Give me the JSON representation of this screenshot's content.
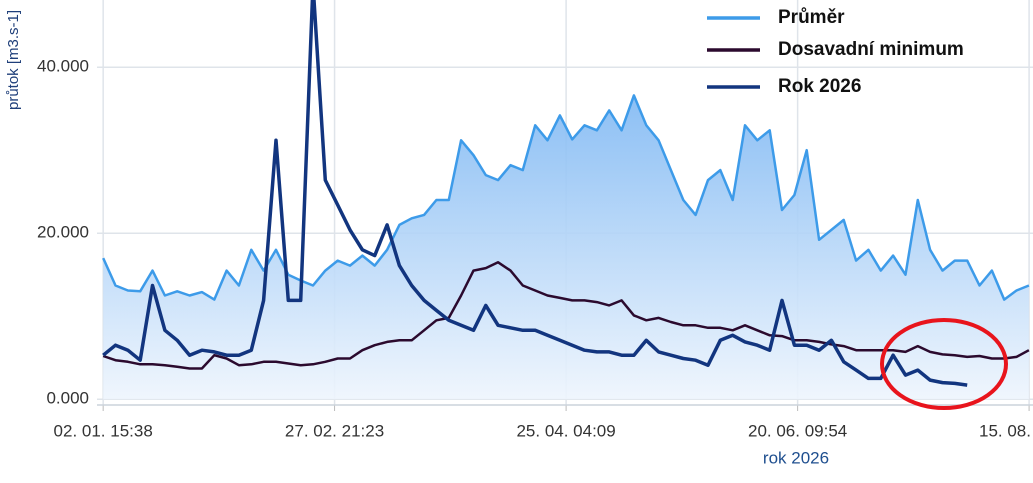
{
  "chart_data": {
    "type": "line",
    "y_label": "průtok [m3.s-1]",
    "x_label": "rok 2026",
    "x": [
      0,
      3,
      6,
      9,
      12,
      15,
      18,
      21,
      24,
      27,
      30,
      33,
      36,
      39,
      42,
      45,
      48,
      51,
      54,
      57,
      60,
      63,
      66,
      69,
      72,
      75,
      78,
      81,
      84,
      87,
      90,
      93,
      96,
      99,
      102,
      105,
      108,
      111,
      114,
      117,
      120,
      123,
      126,
      129,
      132,
      135,
      138,
      141,
      144,
      147,
      150,
      153,
      156,
      159,
      162,
      165,
      168,
      171,
      174,
      177,
      180,
      183,
      186,
      189,
      192,
      195,
      198,
      201,
      204,
      207,
      210,
      213,
      216,
      219,
      222,
      225
    ],
    "xlim": [
      -1.5,
      226
    ],
    "xticks": [
      {
        "value": 0,
        "label": "02. 01. 15:38"
      },
      {
        "value": 56.24,
        "label": "27. 02. 21:23"
      },
      {
        "value": 112.52,
        "label": "25. 04. 04:09"
      },
      {
        "value": 168.79,
        "label": "20. 06. 09:54"
      },
      {
        "value": 225.05,
        "label": "15. 08."
      }
    ],
    "ylim": [
      -0.7,
      48.1
    ],
    "yticks": [
      {
        "value": 0,
        "label": "0.000"
      },
      {
        "value": 20,
        "label": "20.000"
      },
      {
        "value": 40,
        "label": "40.000"
      }
    ],
    "grid": true,
    "legend": "top-right",
    "series": [
      {
        "name": "Průměr",
        "color": "#3d9be9",
        "area": true,
        "values": [
          17,
          13.7,
          13.1,
          13,
          15.5,
          12.5,
          13,
          12.5,
          12.9,
          12,
          15.5,
          13.7,
          18,
          15.5,
          18,
          15,
          14.3,
          13.7,
          15.5,
          16.7,
          16.1,
          17.3,
          16.1,
          18,
          21,
          21.8,
          22.2,
          24,
          24,
          31.2,
          29.4,
          27,
          26.4,
          28.2,
          27.6,
          33,
          31.2,
          34.2,
          31.3,
          33,
          32.4,
          34.8,
          32.4,
          36.6,
          33,
          31.2,
          27.6,
          24,
          22.2,
          26.4,
          27.6,
          24,
          33,
          31.2,
          32.4,
          22.8,
          24.6,
          30,
          19.2,
          20.4,
          21.6,
          16.7,
          18,
          15.5,
          17.3,
          15,
          24,
          18,
          15.5,
          16.7,
          16.7,
          13.7,
          15.5,
          12,
          13.1,
          13.7
        ]
      },
      {
        "name": "Dosavadní minimum",
        "color": "#2b0a2e",
        "values": [
          5.2,
          4.7,
          4.5,
          4.2,
          4.2,
          4.1,
          3.9,
          3.7,
          3.7,
          5.3,
          4.9,
          4.1,
          4.2,
          4.5,
          4.5,
          4.3,
          4.1,
          4.2,
          4.5,
          4.9,
          4.9,
          5.9,
          6.5,
          6.9,
          7.1,
          7.1,
          8.3,
          9.5,
          9.8,
          12.5,
          15.5,
          15.8,
          16.5,
          15.5,
          13.7,
          13.1,
          12.5,
          12.2,
          11.9,
          11.9,
          11.7,
          11.3,
          11.9,
          10.1,
          9.5,
          9.8,
          9.3,
          8.9,
          8.9,
          8.6,
          8.6,
          8.3,
          8.9,
          8.3,
          7.7,
          7.6,
          7.1,
          7.1,
          6.9,
          6.6,
          6.4,
          5.9,
          5.9,
          5.9,
          5.9,
          5.7,
          6.4,
          5.7,
          5.4,
          5.3,
          5.1,
          5.2,
          4.9,
          4.9,
          5.1,
          5.9
        ]
      },
      {
        "name": "Rok 2026",
        "color": "#12357f",
        "values": [
          5.3,
          6.5,
          5.9,
          4.7,
          13.7,
          8.3,
          7.1,
          5.3,
          5.9,
          5.7,
          5.3,
          5.3,
          5.9,
          11.9,
          31.2,
          11.9,
          11.9,
          50,
          26.4,
          23.4,
          20.4,
          18,
          17.3,
          21,
          16.1,
          13.7,
          11.9,
          10.7,
          9.5,
          8.9,
          8.3,
          11.3,
          8.9,
          8.6,
          8.3,
          8.3,
          7.7,
          7.1,
          6.5,
          5.9,
          5.7,
          5.7,
          5.3,
          5.3,
          7.1,
          5.7,
          5.3,
          4.9,
          4.7,
          4.1,
          7.1,
          7.7,
          6.9,
          6.5,
          5.9,
          11.9,
          6.5,
          6.5,
          5.9,
          7.1,
          4.5,
          3.5,
          2.5,
          2.5,
          5.3,
          2.9,
          3.5,
          2.3,
          2,
          1.9,
          1.7,
          null,
          null,
          null,
          null,
          null
        ]
      }
    ]
  }
}
